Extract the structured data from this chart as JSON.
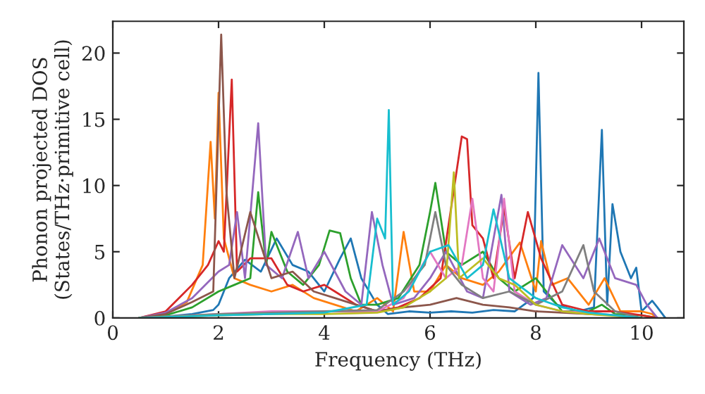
{
  "chart_data": {
    "type": "line",
    "xlabel": "Frequency (THz)",
    "ylabel": "Phonon projected DOS\n(States/THz·primitive cell)",
    "xlim": [
      0,
      10.8
    ],
    "ylim": [
      0,
      22.4
    ],
    "xticks": [
      0,
      2,
      4,
      6,
      8,
      10
    ],
    "yticks": [
      0,
      5,
      10,
      15,
      20
    ],
    "grid": false,
    "legend": false,
    "marker": "none",
    "line_style": "solid",
    "series": [
      {
        "color": "#1f77b4",
        "x": [
          0.5,
          1.0,
          1.5,
          1.9,
          2.0,
          2.2,
          2.5,
          2.8,
          3.1,
          3.4,
          3.7,
          4.0,
          4.3,
          4.5,
          4.7,
          5.0,
          5.2,
          5.6,
          6.0,
          6.4,
          6.8,
          7.2,
          7.6,
          7.95,
          8.05,
          8.15,
          8.4,
          8.8,
          9.1,
          9.25,
          9.35,
          9.45,
          9.6,
          9.8,
          9.9,
          10.0,
          10.2,
          10.3,
          10.45
        ],
        "values": [
          0.0,
          0.1,
          0.3,
          0.6,
          1.0,
          3.0,
          4.4,
          3.5,
          6.0,
          4.0,
          3.5,
          2.0,
          4.5,
          6.0,
          3.0,
          1.0,
          0.3,
          0.5,
          0.4,
          0.5,
          0.4,
          0.6,
          0.5,
          1.5,
          18.5,
          2.0,
          1.0,
          0.5,
          0.8,
          14.2,
          1.0,
          8.6,
          5.0,
          3.0,
          3.8,
          0.5,
          1.3,
          0.8,
          0.0
        ]
      },
      {
        "color": "#ff7f0e",
        "x": [
          0.5,
          1.0,
          1.4,
          1.7,
          1.85,
          1.93,
          2.0,
          2.1,
          2.3,
          2.6,
          3.0,
          3.4,
          3.8,
          4.2,
          4.6,
          5.0,
          5.3,
          5.5,
          5.7,
          6.0,
          6.3,
          6.6,
          7.0,
          7.3,
          7.7,
          8.0,
          8.1,
          8.3,
          8.6,
          9.0,
          9.3,
          9.6,
          10.0,
          10.2,
          10.3
        ],
        "values": [
          0.0,
          0.3,
          1.2,
          4.0,
          13.3,
          7.5,
          17.0,
          6.0,
          3.0,
          2.5,
          2.0,
          2.5,
          1.5,
          1.0,
          0.5,
          1.5,
          0.5,
          6.5,
          2.0,
          2.0,
          4.0,
          3.0,
          2.5,
          3.5,
          5.7,
          2.0,
          5.8,
          2.5,
          3.0,
          1.0,
          3.0,
          0.5,
          0.5,
          0.3,
          0.0
        ]
      },
      {
        "color": "#2ca02c",
        "x": [
          0.5,
          1.0,
          1.5,
          2.0,
          2.3,
          2.6,
          2.75,
          2.9,
          3.0,
          3.3,
          3.6,
          3.9,
          4.1,
          4.3,
          4.5,
          4.7,
          5.0,
          5.4,
          5.8,
          6.0,
          6.1,
          6.3,
          6.6,
          7.0,
          7.3,
          7.6,
          8.0,
          8.5,
          9.0,
          9.25,
          9.5,
          10.0,
          10.3
        ],
        "values": [
          0.0,
          0.2,
          0.8,
          2.0,
          2.5,
          3.0,
          9.5,
          4.0,
          6.5,
          3.5,
          2.5,
          4.0,
          6.6,
          6.4,
          3.0,
          1.0,
          1.0,
          1.5,
          4.0,
          8.0,
          10.2,
          5.0,
          4.0,
          5.0,
          3.0,
          2.0,
          3.0,
          0.5,
          0.5,
          1.0,
          0.3,
          0.2,
          0.0
        ]
      },
      {
        "color": "#d62728",
        "x": [
          0.5,
          1.0,
          1.5,
          1.8,
          2.0,
          2.1,
          2.25,
          2.35,
          2.6,
          3.0,
          3.3,
          3.6,
          4.0,
          4.2,
          4.6,
          5.0,
          5.4,
          5.8,
          6.2,
          6.6,
          6.7,
          6.8,
          7.0,
          7.2,
          7.4,
          7.6,
          7.85,
          8.1,
          8.5,
          9.0,
          9.5,
          10.0,
          10.3
        ],
        "values": [
          0.0,
          0.5,
          2.5,
          4.0,
          5.8,
          5.0,
          18.0,
          3.5,
          4.5,
          4.5,
          2.5,
          2.0,
          2.5,
          2.0,
          1.0,
          0.5,
          0.8,
          1.5,
          3.0,
          13.7,
          13.5,
          7.0,
          6.0,
          3.0,
          8.3,
          3.0,
          8.0,
          4.5,
          1.0,
          0.5,
          0.5,
          0.2,
          0.0
        ]
      },
      {
        "color": "#9467bd",
        "x": [
          0.5,
          1.0,
          1.5,
          2.0,
          2.2,
          2.35,
          2.5,
          2.75,
          2.9,
          3.2,
          3.5,
          3.7,
          4.0,
          4.4,
          4.7,
          4.9,
          5.1,
          5.3,
          5.7,
          6.0,
          6.3,
          6.7,
          7.0,
          7.35,
          7.5,
          7.9,
          8.2,
          8.5,
          8.9,
          9.2,
          9.5,
          9.9,
          10.1,
          10.3
        ],
        "values": [
          0.0,
          0.4,
          1.5,
          3.5,
          4.0,
          8.0,
          3.0,
          14.7,
          4.0,
          3.0,
          6.5,
          3.0,
          5.0,
          2.0,
          1.0,
          8.0,
          4.0,
          1.0,
          1.5,
          3.0,
          5.0,
          2.0,
          1.5,
          9.3,
          2.0,
          1.0,
          1.5,
          5.5,
          3.0,
          6.0,
          3.0,
          2.5,
          1.0,
          0.0
        ]
      },
      {
        "color": "#8c564b",
        "x": [
          0.5,
          1.0,
          1.5,
          1.9,
          2.05,
          2.15,
          2.3,
          2.6,
          3.0,
          3.4,
          3.8,
          4.2,
          4.6,
          5.0,
          5.5,
          6.0,
          6.5,
          7.0,
          7.5,
          8.0,
          8.5,
          9.0,
          9.5,
          10.0
        ],
        "values": [
          0.0,
          0.3,
          1.2,
          2.0,
          21.4,
          9.5,
          3.0,
          8.0,
          3.0,
          3.5,
          2.0,
          1.5,
          1.0,
          0.5,
          0.8,
          1.0,
          1.5,
          1.0,
          0.8,
          0.5,
          0.4,
          0.3,
          0.2,
          0.0
        ]
      },
      {
        "color": "#e377c2",
        "x": [
          0.5,
          2.0,
          3.0,
          4.0,
          5.0,
          5.5,
          6.0,
          6.3,
          6.6,
          6.8,
          7.0,
          7.2,
          7.4,
          7.6,
          8.0,
          8.5,
          9.0,
          9.5,
          10.0
        ],
        "values": [
          0.0,
          0.3,
          0.5,
          0.5,
          0.5,
          1.5,
          5.0,
          3.0,
          4.0,
          9.0,
          3.0,
          2.0,
          9.0,
          2.0,
          1.0,
          0.5,
          0.4,
          0.2,
          0.0
        ]
      },
      {
        "color": "#7f7f7f",
        "x": [
          0.5,
          2.0,
          3.0,
          4.0,
          5.0,
          5.5,
          5.9,
          6.1,
          6.3,
          6.6,
          7.0,
          7.5,
          8.0,
          8.5,
          8.9,
          9.1,
          9.5,
          10.0
        ],
        "values": [
          0.0,
          0.3,
          0.4,
          0.5,
          0.6,
          2.0,
          4.0,
          8.0,
          4.0,
          2.5,
          1.5,
          2.0,
          1.0,
          2.0,
          5.5,
          2.0,
          0.5,
          0.0
        ]
      },
      {
        "color": "#bcbd22",
        "x": [
          0.5,
          2.0,
          3.0,
          4.0,
          5.0,
          5.5,
          6.0,
          6.3,
          6.45,
          6.55,
          6.7,
          7.0,
          7.3,
          7.6,
          8.0,
          8.5,
          9.0,
          10.0
        ],
        "values": [
          0.0,
          0.2,
          0.3,
          0.3,
          0.4,
          0.8,
          2.0,
          3.0,
          11.0,
          3.0,
          3.5,
          4.5,
          3.0,
          2.5,
          1.0,
          0.5,
          0.3,
          0.0
        ]
      },
      {
        "color": "#17becf",
        "x": [
          0.5,
          2.0,
          3.0,
          4.0,
          4.8,
          5.0,
          5.15,
          5.22,
          5.3,
          5.6,
          6.0,
          6.35,
          6.7,
          7.0,
          7.2,
          7.5,
          8.0,
          8.5,
          9.0,
          10.0
        ],
        "values": [
          0.0,
          0.2,
          0.3,
          0.4,
          1.0,
          7.5,
          6.0,
          15.7,
          1.0,
          2.0,
          5.0,
          5.5,
          3.0,
          4.0,
          8.2,
          3.0,
          1.5,
          0.8,
          0.4,
          0.0
        ]
      }
    ]
  }
}
